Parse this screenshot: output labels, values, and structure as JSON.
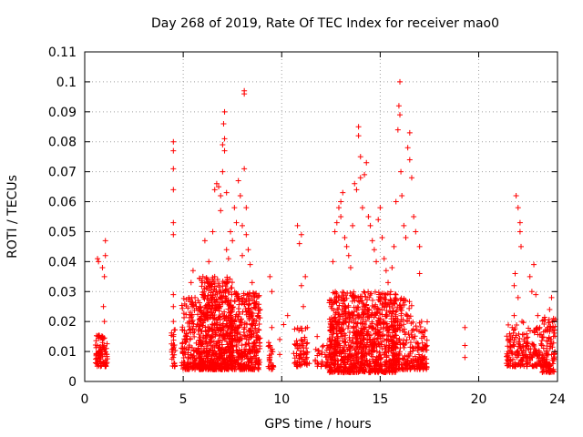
{
  "chart_data": {
    "type": "scatter",
    "title": "Day 268 of 2019, Rate Of TEC Index for receiver mao0",
    "xlabel": "GPS time / hours",
    "ylabel": "ROTI / TECUs",
    "xlim": [
      0,
      24
    ],
    "ylim": [
      0,
      0.11
    ],
    "xticks": [
      0,
      5,
      10,
      15,
      20,
      24
    ],
    "yticks": [
      0,
      0.01,
      0.02,
      0.03,
      0.04,
      0.05,
      0.06,
      0.07,
      0.08,
      0.09,
      0.1,
      0.11
    ],
    "grid": true,
    "marker": "+",
    "marker_color": "#ff0000",
    "series": [
      {
        "name": "ROTI",
        "points": [
          [
            0.6,
            0.006
          ],
          [
            0.6,
            0.009
          ],
          [
            0.65,
            0.012
          ],
          [
            0.7,
            0.015
          ],
          [
            0.7,
            0.04
          ],
          [
            0.65,
            0.041
          ],
          [
            0.8,
            0.008
          ],
          [
            0.85,
            0.01
          ],
          [
            0.9,
            0.013
          ],
          [
            0.95,
            0.025
          ],
          [
            1.0,
            0.035
          ],
          [
            1.05,
            0.042
          ],
          [
            1.05,
            0.047
          ],
          [
            1.1,
            0.011
          ],
          [
            1.1,
            0.006
          ],
          [
            1.0,
            0.02
          ],
          [
            0.9,
            0.038
          ],
          [
            4.5,
            0.08
          ],
          [
            4.5,
            0.077
          ],
          [
            4.5,
            0.071
          ],
          [
            4.5,
            0.064
          ],
          [
            4.5,
            0.053
          ],
          [
            4.5,
            0.049
          ],
          [
            4.5,
            0.029
          ],
          [
            4.5,
            0.025
          ],
          [
            4.5,
            0.02
          ],
          [
            4.5,
            0.015
          ],
          [
            4.5,
            0.011
          ],
          [
            4.5,
            0.008
          ],
          [
            5.0,
            0.01
          ],
          [
            5.2,
            0.014
          ],
          [
            5.3,
            0.02
          ],
          [
            5.4,
            0.033
          ],
          [
            5.5,
            0.037
          ],
          [
            5.6,
            0.028
          ],
          [
            5.8,
            0.024
          ],
          [
            6.0,
            0.035
          ],
          [
            6.1,
            0.047
          ],
          [
            6.3,
            0.04
          ],
          [
            6.5,
            0.05
          ],
          [
            6.6,
            0.064
          ],
          [
            6.7,
            0.066
          ],
          [
            6.8,
            0.065
          ],
          [
            6.9,
            0.062
          ],
          [
            6.9,
            0.057
          ],
          [
            7.0,
            0.07
          ],
          [
            7.0,
            0.079
          ],
          [
            7.1,
            0.077
          ],
          [
            7.1,
            0.081
          ],
          [
            7.05,
            0.086
          ],
          [
            7.1,
            0.09
          ],
          [
            7.2,
            0.063
          ],
          [
            7.2,
            0.044
          ],
          [
            7.3,
            0.041
          ],
          [
            7.4,
            0.05
          ],
          [
            7.5,
            0.047
          ],
          [
            7.6,
            0.058
          ],
          [
            7.7,
            0.053
          ],
          [
            7.8,
            0.067
          ],
          [
            7.9,
            0.062
          ],
          [
            8.0,
            0.052
          ],
          [
            8.0,
            0.042
          ],
          [
            8.1,
            0.097
          ],
          [
            8.1,
            0.096
          ],
          [
            8.1,
            0.071
          ],
          [
            8.2,
            0.058
          ],
          [
            8.2,
            0.049
          ],
          [
            8.3,
            0.044
          ],
          [
            8.4,
            0.039
          ],
          [
            8.5,
            0.033
          ],
          [
            8.6,
            0.028
          ],
          [
            8.7,
            0.025
          ],
          [
            8.8,
            0.022
          ],
          [
            8.9,
            0.024
          ],
          [
            5.1,
            0.009
          ],
          [
            5.5,
            0.006
          ],
          [
            5.9,
            0.005
          ],
          [
            6.2,
            0.01
          ],
          [
            6.4,
            0.004
          ],
          [
            6.8,
            0.007
          ],
          [
            7.2,
            0.005
          ],
          [
            7.6,
            0.006
          ],
          [
            8.0,
            0.008
          ],
          [
            8.4,
            0.007
          ],
          [
            8.8,
            0.006
          ],
          [
            9.4,
            0.035
          ],
          [
            9.5,
            0.03
          ],
          [
            9.4,
            0.012
          ],
          [
            9.4,
            0.008
          ],
          [
            9.5,
            0.005
          ],
          [
            9.5,
            0.018
          ],
          [
            9.9,
            0.009
          ],
          [
            9.9,
            0.014
          ],
          [
            10.1,
            0.019
          ],
          [
            10.3,
            0.022
          ],
          [
            10.8,
            0.052
          ],
          [
            10.9,
            0.046
          ],
          [
            11.0,
            0.049
          ],
          [
            11.0,
            0.032
          ],
          [
            11.0,
            0.012
          ],
          [
            11.0,
            0.008
          ],
          [
            11.1,
            0.025
          ],
          [
            11.2,
            0.035
          ],
          [
            11.3,
            0.018
          ],
          [
            11.4,
            0.006
          ],
          [
            11.8,
            0.015
          ],
          [
            12.0,
            0.005
          ],
          [
            12.2,
            0.009
          ],
          [
            12.3,
            0.012
          ],
          [
            12.5,
            0.025
          ],
          [
            12.6,
            0.04
          ],
          [
            12.7,
            0.05
          ],
          [
            12.8,
            0.053
          ],
          [
            12.9,
            0.058
          ],
          [
            13.0,
            0.06
          ],
          [
            13.0,
            0.055
          ],
          [
            13.1,
            0.063
          ],
          [
            13.2,
            0.048
          ],
          [
            13.3,
            0.045
          ],
          [
            13.4,
            0.042
          ],
          [
            13.5,
            0.038
          ],
          [
            13.6,
            0.052
          ],
          [
            13.7,
            0.066
          ],
          [
            13.8,
            0.064
          ],
          [
            13.9,
            0.085
          ],
          [
            13.9,
            0.082
          ],
          [
            14.0,
            0.075
          ],
          [
            14.0,
            0.068
          ],
          [
            14.1,
            0.058
          ],
          [
            14.2,
            0.069
          ],
          [
            14.3,
            0.073
          ],
          [
            14.4,
            0.055
          ],
          [
            14.5,
            0.052
          ],
          [
            14.6,
            0.047
          ],
          [
            14.7,
            0.044
          ],
          [
            14.8,
            0.04
          ],
          [
            14.9,
            0.054
          ],
          [
            15.0,
            0.058
          ],
          [
            15.1,
            0.048
          ],
          [
            15.2,
            0.041
          ],
          [
            15.3,
            0.037
          ],
          [
            15.4,
            0.033
          ],
          [
            15.5,
            0.029
          ],
          [
            15.6,
            0.038
          ],
          [
            15.7,
            0.045
          ],
          [
            15.8,
            0.06
          ],
          [
            15.9,
            0.084
          ],
          [
            15.95,
            0.092
          ],
          [
            16.0,
            0.1
          ],
          [
            16.0,
            0.089
          ],
          [
            16.05,
            0.07
          ],
          [
            16.1,
            0.062
          ],
          [
            16.2,
            0.052
          ],
          [
            16.3,
            0.048
          ],
          [
            16.4,
            0.078
          ],
          [
            16.5,
            0.083
          ],
          [
            16.5,
            0.074
          ],
          [
            16.6,
            0.068
          ],
          [
            16.7,
            0.055
          ],
          [
            16.8,
            0.05
          ],
          [
            17.0,
            0.045
          ],
          [
            17.0,
            0.036
          ],
          [
            17.1,
            0.02
          ],
          [
            17.2,
            0.015
          ],
          [
            17.3,
            0.012
          ],
          [
            17.3,
            0.006
          ],
          [
            12.6,
            0.008
          ],
          [
            13.0,
            0.005
          ],
          [
            13.5,
            0.007
          ],
          [
            14.0,
            0.004
          ],
          [
            14.5,
            0.006
          ],
          [
            15.0,
            0.005
          ],
          [
            15.5,
            0.007
          ],
          [
            16.0,
            0.004
          ],
          [
            16.5,
            0.006
          ],
          [
            17.0,
            0.008
          ],
          [
            19.3,
            0.018
          ],
          [
            19.3,
            0.012
          ],
          [
            19.3,
            0.008
          ],
          [
            21.5,
            0.01
          ],
          [
            21.5,
            0.014
          ],
          [
            21.6,
            0.006
          ],
          [
            21.7,
            0.018
          ],
          [
            21.8,
            0.022
          ],
          [
            21.8,
            0.032
          ],
          [
            21.85,
            0.036
          ],
          [
            21.9,
            0.062
          ],
          [
            22.0,
            0.058
          ],
          [
            22.1,
            0.053
          ],
          [
            22.1,
            0.05
          ],
          [
            22.15,
            0.045
          ],
          [
            22.0,
            0.028
          ],
          [
            22.2,
            0.02
          ],
          [
            22.3,
            0.014
          ],
          [
            22.4,
            0.009
          ],
          [
            22.5,
            0.007
          ],
          [
            22.6,
            0.035
          ],
          [
            22.7,
            0.03
          ],
          [
            22.8,
            0.039
          ],
          [
            22.9,
            0.029
          ],
          [
            23.0,
            0.022
          ],
          [
            23.1,
            0.018
          ],
          [
            23.2,
            0.012
          ],
          [
            23.3,
            0.008
          ],
          [
            23.4,
            0.005
          ],
          [
            23.5,
            0.018
          ],
          [
            23.6,
            0.024
          ],
          [
            23.7,
            0.028
          ],
          [
            23.8,
            0.021
          ],
          [
            23.8,
            0.015
          ],
          [
            23.7,
            0.009
          ],
          [
            23.6,
            0.005
          ]
        ],
        "clusters": [
          {
            "x_range": [
              0.55,
              1.15
            ],
            "y_range": [
              0.005,
              0.016
            ],
            "count": 80
          },
          {
            "x_range": [
              4.4,
              4.6
            ],
            "y_range": [
              0.005,
              0.018
            ],
            "count": 25
          },
          {
            "x_range": [
              4.9,
              5.9
            ],
            "y_range": [
              0.004,
              0.028
            ],
            "count": 180
          },
          {
            "x_range": [
              5.8,
              7.5
            ],
            "y_range": [
              0.004,
              0.035
            ],
            "count": 650
          },
          {
            "x_range": [
              7.4,
              8.9
            ],
            "y_range": [
              0.004,
              0.03
            ],
            "count": 380
          },
          {
            "x_range": [
              9.3,
              9.6
            ],
            "y_range": [
              0.004,
              0.013
            ],
            "count": 25
          },
          {
            "x_range": [
              10.6,
              11.3
            ],
            "y_range": [
              0.005,
              0.018
            ],
            "count": 70
          },
          {
            "x_range": [
              11.7,
              12.4
            ],
            "y_range": [
              0.005,
              0.012
            ],
            "count": 30
          },
          {
            "x_range": [
              12.4,
              14.2
            ],
            "y_range": [
              0.003,
              0.03
            ],
            "count": 520
          },
          {
            "x_range": [
              14.0,
              15.8
            ],
            "y_range": [
              0.003,
              0.03
            ],
            "count": 460
          },
          {
            "x_range": [
              15.6,
              16.6
            ],
            "y_range": [
              0.004,
              0.028
            ],
            "count": 180
          },
          {
            "x_range": [
              16.6,
              17.4
            ],
            "y_range": [
              0.004,
              0.02
            ],
            "count": 110
          },
          {
            "x_range": [
              21.4,
              22.3
            ],
            "y_range": [
              0.005,
              0.02
            ],
            "count": 100
          },
          {
            "x_range": [
              22.3,
              23.2
            ],
            "y_range": [
              0.005,
              0.018
            ],
            "count": 90
          },
          {
            "x_range": [
              23.2,
              23.9
            ],
            "y_range": [
              0.003,
              0.022
            ],
            "count": 120
          }
        ]
      }
    ]
  }
}
